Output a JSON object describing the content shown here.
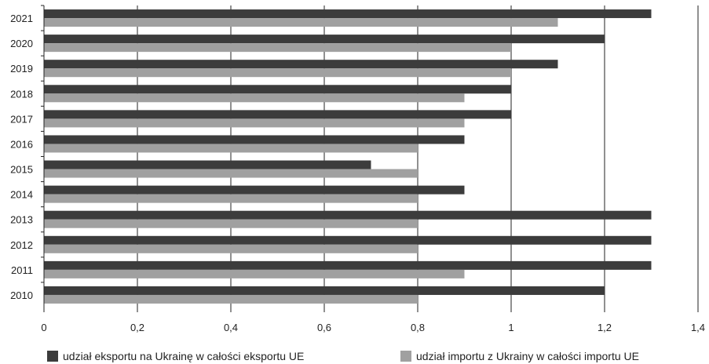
{
  "chart_data": {
    "type": "bar",
    "orientation": "horizontal",
    "categories": [
      "2021",
      "2020",
      "2019",
      "2018",
      "2017",
      "2016",
      "2015",
      "2014",
      "2013",
      "2012",
      "2011",
      "2010"
    ],
    "series": [
      {
        "name": "udział eksportu na Ukrainę w całości eksportu UE",
        "color": "#3c3c3c",
        "values": [
          1.3,
          1.2,
          1.1,
          1.0,
          1.0,
          0.9,
          0.7,
          0.9,
          1.3,
          1.3,
          1.3,
          1.2
        ]
      },
      {
        "name": "udział importu z Ukrainy w całości importu UE",
        "color": "#a0a0a0",
        "values": [
          1.1,
          1.0,
          1.0,
          0.9,
          0.9,
          0.8,
          0.8,
          0.8,
          0.8,
          0.8,
          0.9,
          0.8
        ]
      }
    ],
    "xlim": [
      0,
      1.4
    ],
    "x_ticks": [
      "0",
      "0,2",
      "0,4",
      "0,6",
      "0,8",
      "1",
      "1,2",
      "1,4"
    ],
    "x_tick_values": [
      0,
      0.2,
      0.4,
      0.6,
      0.8,
      1.0,
      1.2,
      1.4
    ],
    "grid": "vertical",
    "legend_position": "bottom"
  }
}
